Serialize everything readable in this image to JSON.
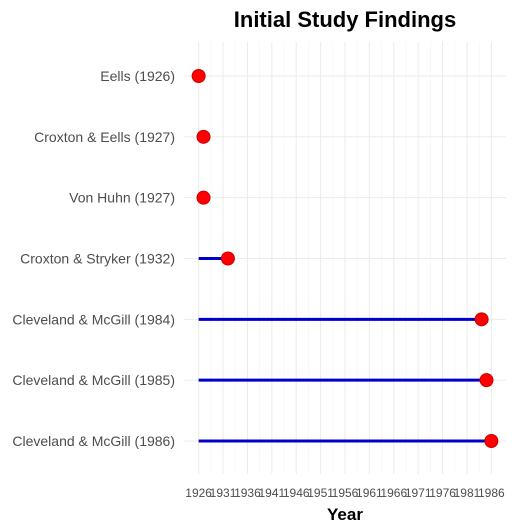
{
  "chart_data": {
    "type": "lollipop",
    "title": "Initial Study Findings",
    "xlabel": "Year",
    "ylabel": "",
    "categories": [
      "Eells (1926)",
      "Croxton & Eells (1927)",
      "Von Huhn (1927)",
      "Croxton & Stryker (1932)",
      "Cleveland & McGill (1984)",
      "Cleveland & McGill (1985)",
      "Cleveland & McGill (1986)"
    ],
    "x_start": [
      1926,
      1926,
      1926,
      1926,
      1926,
      1926,
      1926
    ],
    "values": [
      1926,
      1927,
      1927,
      1932,
      1984,
      1985,
      1986
    ],
    "xticks": [
      "1926",
      "1931",
      "1936",
      "1941",
      "1946",
      "1951",
      "1956",
      "1961",
      "1966",
      "1971",
      "1976",
      "1981",
      "1986"
    ],
    "xlim": [
      1923.0,
      1989.0
    ],
    "grid": true,
    "legend": "none",
    "colors": {
      "segment": "#0000CD",
      "point": "#FF0000",
      "point_stroke": "#C80000"
    }
  }
}
